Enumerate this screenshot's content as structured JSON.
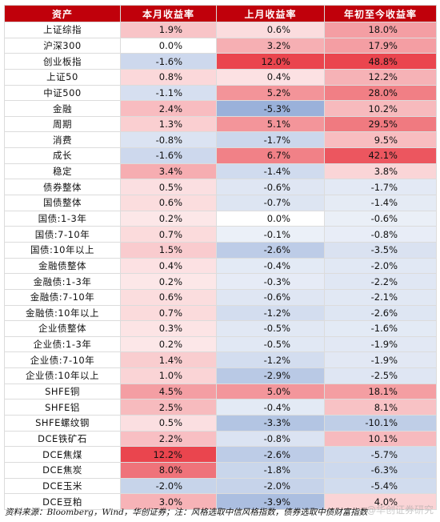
{
  "table": {
    "headers": [
      "资产",
      "本月收益率",
      "上月收益率",
      "年初至今收益率"
    ],
    "rows": [
      {
        "name": "上证综指",
        "cur": "1.9%",
        "prev": "0.6%",
        "ytd": "18.0%"
      },
      {
        "name": "沪深300",
        "cur": "0.0%",
        "prev": "3.2%",
        "ytd": "17.9%"
      },
      {
        "name": "创业板指",
        "cur": "-1.6%",
        "prev": "12.0%",
        "ytd": "48.8%"
      },
      {
        "name": "上证50",
        "cur": "0.8%",
        "prev": "0.4%",
        "ytd": "12.2%"
      },
      {
        "name": "中证500",
        "cur": "-1.1%",
        "prev": "5.2%",
        "ytd": "28.0%"
      },
      {
        "name": "金融",
        "cur": "2.4%",
        "prev": "-5.3%",
        "ytd": "10.2%"
      },
      {
        "name": "周期",
        "cur": "1.3%",
        "prev": "5.1%",
        "ytd": "29.5%"
      },
      {
        "name": "消费",
        "cur": "-0.8%",
        "prev": "-1.7%",
        "ytd": "9.5%"
      },
      {
        "name": "成长",
        "cur": "-1.6%",
        "prev": "6.7%",
        "ytd": "42.1%"
      },
      {
        "name": "稳定",
        "cur": "3.4%",
        "prev": "-1.4%",
        "ytd": "3.8%"
      },
      {
        "name": "债券整体",
        "cur": "0.5%",
        "prev": "-0.6%",
        "ytd": "-1.7%"
      },
      {
        "name": "国债整体",
        "cur": "0.6%",
        "prev": "-0.7%",
        "ytd": "-1.4%"
      },
      {
        "name": "国债:1-3年",
        "cur": "0.2%",
        "prev": "0.0%",
        "ytd": "-0.6%"
      },
      {
        "name": "国债:7-10年",
        "cur": "0.7%",
        "prev": "-0.1%",
        "ytd": "-0.8%"
      },
      {
        "name": "国债:10年以上",
        "cur": "1.5%",
        "prev": "-2.6%",
        "ytd": "-3.5%"
      },
      {
        "name": "金融债整体",
        "cur": "0.4%",
        "prev": "-0.4%",
        "ytd": "-2.0%"
      },
      {
        "name": "金融债:1-3年",
        "cur": "0.2%",
        "prev": "-0.3%",
        "ytd": "-2.2%"
      },
      {
        "name": "金融债:7-10年",
        "cur": "0.6%",
        "prev": "-0.6%",
        "ytd": "-2.1%"
      },
      {
        "name": "金融债:10年以上",
        "cur": "0.7%",
        "prev": "-1.2%",
        "ytd": "-2.6%"
      },
      {
        "name": "企业债整体",
        "cur": "0.3%",
        "prev": "-0.5%",
        "ytd": "-1.6%"
      },
      {
        "name": "企业债:1-3年",
        "cur": "0.2%",
        "prev": "-0.5%",
        "ytd": "-1.9%"
      },
      {
        "name": "企业债:7-10年",
        "cur": "1.4%",
        "prev": "-1.2%",
        "ytd": "-1.9%"
      },
      {
        "name": "企业债:10年以上",
        "cur": "1.0%",
        "prev": "-2.9%",
        "ytd": "-2.5%"
      },
      {
        "name": "SHFE铜",
        "cur": "4.5%",
        "prev": "5.0%",
        "ytd": "18.1%"
      },
      {
        "name": "SHFE铝",
        "cur": "2.5%",
        "prev": "-0.4%",
        "ytd": "8.1%"
      },
      {
        "name": "SHFE螺纹钢",
        "cur": "0.5%",
        "prev": "-3.3%",
        "ytd": "-10.1%"
      },
      {
        "name": "DCE铁矿石",
        "cur": "2.2%",
        "prev": "-0.8%",
        "ytd": "10.1%"
      },
      {
        "name": "DCE焦煤",
        "cur": "12.2%",
        "prev": "-2.6%",
        "ytd": "-5.7%"
      },
      {
        "name": "DCE焦炭",
        "cur": "8.0%",
        "prev": "-1.8%",
        "ytd": "-6.3%"
      },
      {
        "name": "DCE玉米",
        "cur": "-2.0%",
        "prev": "-2.0%",
        "ytd": "-5.4%"
      },
      {
        "name": "DCE豆粕",
        "cur": "3.0%",
        "prev": "-3.9%",
        "ytd": "4.0%"
      }
    ]
  },
  "colors": {
    "header_bg": "#c0000b",
    "positive_base": "#e8303a",
    "negative_base": "#3e6ab8"
  },
  "footer": {
    "source": "资料来源：Bloomberg，Wind，华创证券；注：风格选取中信风格指数，债券选取中债财富指数"
  },
  "watermark": "@华创证券研究"
}
